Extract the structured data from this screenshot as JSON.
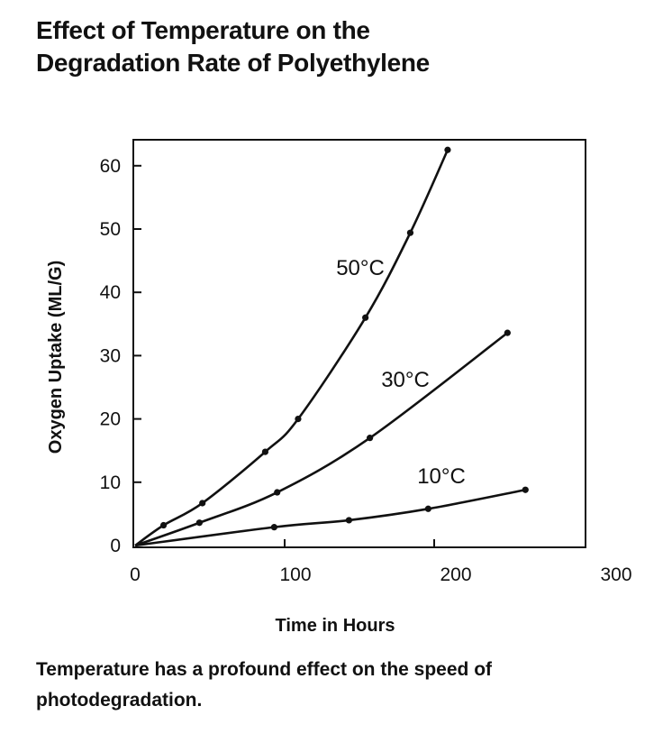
{
  "title_lines": [
    "Effect of Temperature on the",
    "Degradation Rate of Polyethylene"
  ],
  "caption": "Temperature has a profound effect on the speed of photodegradation.",
  "chart_data": {
    "type": "line",
    "title": "Effect of Temperature on the Degradation Rate of Polyethylene",
    "xlabel": "Time in Hours",
    "ylabel": "Oxygen Uptake (ML/G)",
    "xlim": [
      0,
      300
    ],
    "ylim": [
      0,
      64
    ],
    "xticks": [
      0,
      100,
      200,
      300
    ],
    "yticks": [
      0,
      10,
      20,
      30,
      40,
      50,
      60
    ],
    "grid": false,
    "line_color": "#111111",
    "series": [
      {
        "name": "50°C",
        "x": [
          0,
          19,
          45,
          87,
          109,
          154,
          184,
          209
        ],
        "y": [
          0,
          3.2,
          6.7,
          14.8,
          20,
          36,
          49.4,
          62.5
        ]
      },
      {
        "name": "30°C",
        "x": [
          0,
          43,
          95,
          157,
          249
        ],
        "y": [
          0,
          3.6,
          8.4,
          17,
          33.6
        ]
      },
      {
        "name": "10°C",
        "x": [
          0,
          93,
          143,
          196,
          261
        ],
        "y": [
          0,
          2.9,
          4.0,
          5.8,
          8.8
        ]
      }
    ]
  }
}
